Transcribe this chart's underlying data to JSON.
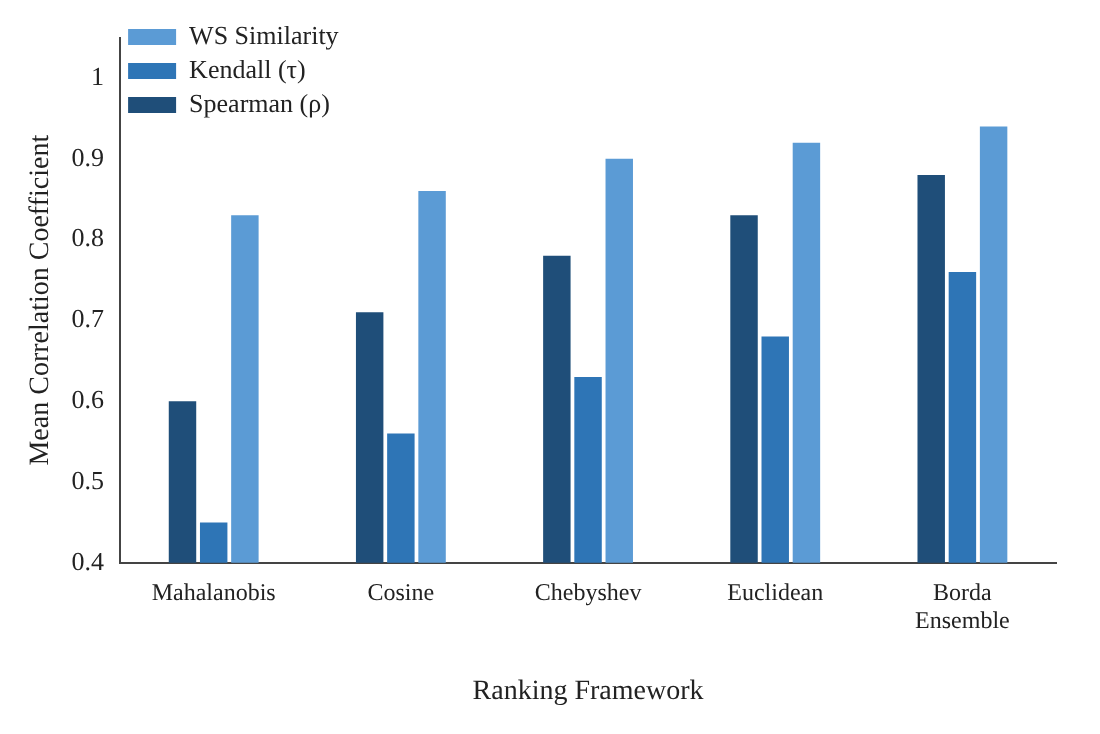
{
  "chart_data": {
    "type": "bar",
    "xlabel": "Ranking Framework",
    "ylabel": "Mean Correlation Coefficient",
    "categories": [
      "Mahalanobis",
      "Cosine",
      "Chebyshev",
      "Euclidean",
      "Borda Ensemble"
    ],
    "series": [
      {
        "name": "Spearman (ρ)",
        "color": "#1f4e79",
        "values": [
          0.6,
          0.71,
          0.78,
          0.83,
          0.88
        ]
      },
      {
        "name": "Kendall (τ)",
        "color": "#2e75b6",
        "values": [
          0.45,
          0.56,
          0.63,
          0.68,
          0.76
        ]
      },
      {
        "name": "WS Similarity",
        "color": "#5b9bd5",
        "values": [
          0.83,
          0.86,
          0.9,
          0.92,
          0.94
        ]
      }
    ],
    "ylim": [
      0.4,
      1.05
    ],
    "yticks": [
      0.4,
      0.5,
      0.6,
      0.7,
      0.8,
      0.9,
      1
    ],
    "grid": false,
    "legend": "top left"
  }
}
